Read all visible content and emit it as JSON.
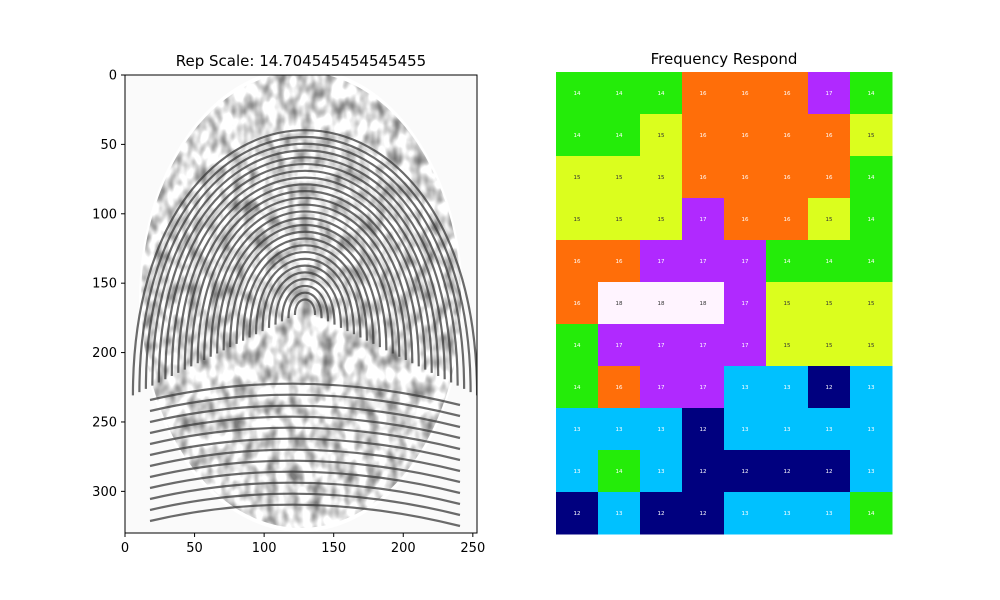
{
  "chart_data": [
    {
      "type": "image",
      "title": "Rep Scale: 14.704545454545455",
      "image": "grayscale fingerprint scan",
      "xticks": [
        0,
        50,
        100,
        150,
        200,
        250
      ],
      "yticks": [
        0,
        50,
        100,
        150,
        200,
        250,
        300
      ],
      "xlim": [
        0,
        253
      ],
      "ylim": [
        330,
        0
      ]
    },
    {
      "type": "heatmap",
      "title": "Frequency Respond",
      "colormap": {
        "12": "#00007f",
        "13": "#00c1ff",
        "14": "#24ec09",
        "15": "#dbfe1e",
        "16": "#ff6e09",
        "17": "#b029ff",
        "18": "#fff4ff"
      },
      "values": [
        [
          14,
          14,
          14,
          16,
          16,
          16,
          17,
          14
        ],
        [
          14,
          14,
          15,
          16,
          16,
          16,
          16,
          15
        ],
        [
          15,
          15,
          15,
          16,
          16,
          16,
          16,
          14
        ],
        [
          15,
          15,
          15,
          17,
          16,
          16,
          15,
          14
        ],
        [
          16,
          16,
          17,
          17,
          17,
          14,
          14,
          14
        ],
        [
          16,
          18,
          18,
          18,
          17,
          15,
          15,
          15
        ],
        [
          14,
          17,
          17,
          17,
          17,
          15,
          15,
          15
        ],
        [
          14,
          16,
          17,
          17,
          13,
          13,
          12,
          13
        ],
        [
          13,
          13,
          13,
          12,
          13,
          13,
          13,
          13
        ],
        [
          13,
          14,
          13,
          12,
          12,
          12,
          12,
          13
        ],
        [
          12,
          13,
          12,
          12,
          13,
          13,
          13,
          14
        ]
      ]
    }
  ]
}
